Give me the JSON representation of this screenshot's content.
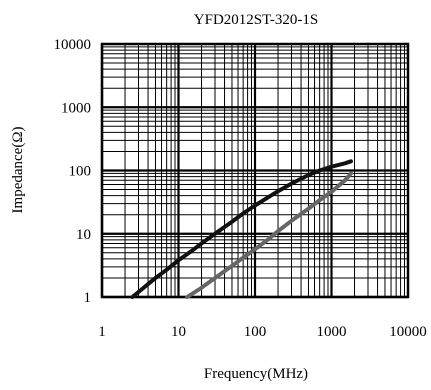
{
  "chart_data": {
    "type": "line",
    "title": "YFD2012ST-320-1S",
    "xlabel": "Frequency(MHz)",
    "ylabel": "Impedance(Ω)",
    "x_scale": "log",
    "y_scale": "log",
    "xlim": [
      1,
      10000
    ],
    "ylim": [
      1,
      10000
    ],
    "x_ticks": [
      "1",
      "10",
      "100",
      "1000",
      "10000"
    ],
    "y_ticks": [
      "1",
      "10",
      "100",
      "1000",
      "10000"
    ],
    "grid": true,
    "series": [
      {
        "color": "#111111",
        "x": [
          2.5,
          3,
          4,
          5,
          7,
          10,
          15,
          20,
          30,
          50,
          70,
          100,
          150,
          200,
          300,
          500,
          700,
          1000,
          1500,
          1800
        ],
        "y": [
          1,
          1.2,
          1.6,
          2,
          2.7,
          3.8,
          5.4,
          7,
          10,
          15.5,
          21,
          28,
          38,
          47,
          62,
          85,
          100,
          115,
          130,
          140
        ]
      },
      {
        "color": "#666666",
        "x": [
          13,
          20,
          30,
          50,
          70,
          100,
          150,
          200,
          300,
          500,
          700,
          1000,
          1500,
          1800
        ],
        "y": [
          1,
          1.4,
          2,
          3.1,
          4.2,
          5.7,
          8.2,
          11,
          16,
          25,
          34,
          46,
          70,
          90
        ]
      }
    ]
  }
}
